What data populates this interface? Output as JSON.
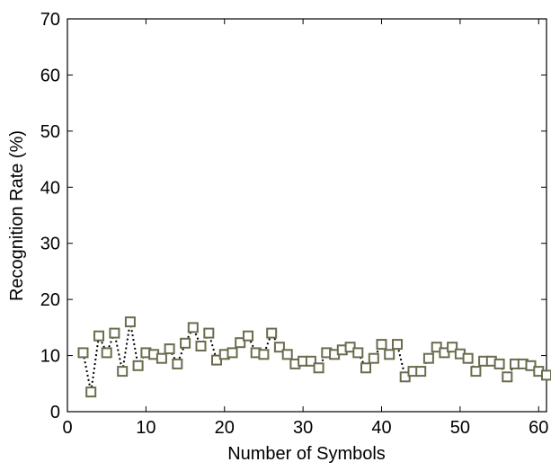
{
  "colors": {
    "marker": "#6b6b4e",
    "line": "#000000",
    "axis": "#000000",
    "background": "#ffffff"
  },
  "chart_data": {
    "type": "line",
    "title": "",
    "xlabel": "Number of Symbols",
    "ylabel": "Recognition Rate (%)",
    "xlim": [
      0,
      61
    ],
    "ylim": [
      0,
      70
    ],
    "xticks": [
      0,
      10,
      20,
      30,
      40,
      50,
      60
    ],
    "yticks": [
      0,
      10,
      20,
      30,
      40,
      50,
      60,
      70
    ],
    "grid": false,
    "legend": "none",
    "marker": "square-hollow",
    "line_style": "dotted",
    "series": [
      {
        "x": [
          2,
          3,
          4,
          5,
          6,
          7,
          8,
          9,
          10,
          11,
          12,
          13,
          14,
          15,
          16,
          17,
          18,
          19,
          20,
          21,
          22,
          23,
          24,
          25,
          26,
          27,
          28,
          29,
          30,
          31,
          32,
          33,
          34,
          35,
          36,
          37,
          38,
          39,
          40,
          41,
          42,
          43,
          44,
          45,
          46,
          47,
          48,
          49,
          50,
          51,
          52,
          53,
          54,
          55,
          56,
          57,
          58,
          59,
          60,
          61
        ],
        "values": [
          10.5,
          3.5,
          13.5,
          10.5,
          14,
          7.2,
          16,
          8.2,
          10.5,
          10.2,
          9.5,
          11.2,
          8.5,
          12.2,
          15,
          11.7,
          14,
          9.2,
          10.2,
          10.5,
          12.3,
          13.5,
          10.5,
          10.2,
          14,
          11.5,
          10.2,
          8.5,
          9,
          9,
          7.8,
          10.5,
          10.2,
          11,
          11.5,
          10.5,
          7.8,
          9.5,
          12,
          10.2,
          12,
          6.2,
          7.2,
          7.2,
          9.5,
          11.5,
          10.5,
          11.5,
          10.3,
          9.5,
          7.2,
          9,
          9,
          8.5,
          6.2,
          8.5,
          8.5,
          8.2,
          7.2,
          6.5
        ]
      }
    ]
  }
}
